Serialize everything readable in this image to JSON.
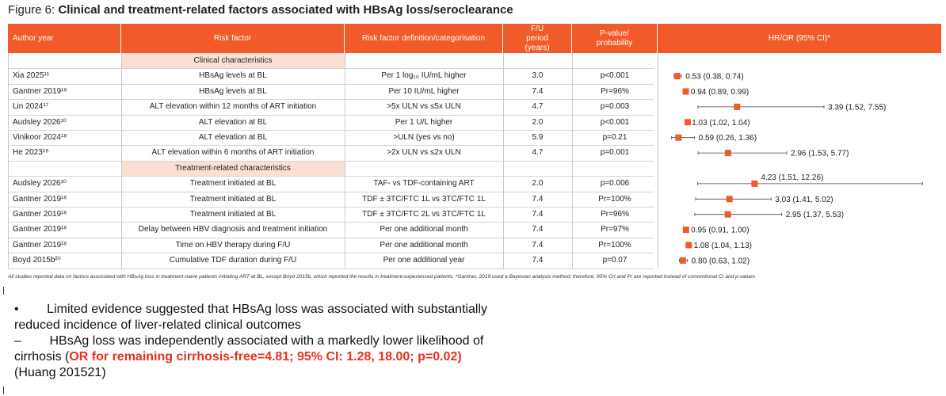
{
  "figure": {
    "title_lead": "Figure 6: ",
    "title_main": "Clinical and treatment-related factors associated with HBsAg loss/seroclearance"
  },
  "headers": {
    "author": "Author year",
    "risk": "Risk factor",
    "def": "Risk factor definition/categorisation",
    "fu": "F/U period (years)",
    "p": "P-value/ probability",
    "hr": "HR/OR (95% CI)*"
  },
  "sections": {
    "clinical": "Clinical characteristics",
    "treatment": "Treatment-related characteristics"
  },
  "chart_data": {
    "type": "table",
    "forest_plot": true,
    "columns": [
      "Author year",
      "Risk factor",
      "Risk factor definition/categorisation",
      "F/U period (years)",
      "P-value/ probability",
      "HR/OR (95% CI)*"
    ],
    "rows": [
      {
        "author": "Xia 2025¹¹",
        "risk": "HBsAg levels at BL",
        "def": "Per 1 log₁₀ IU/mL higher",
        "fu": "3.0",
        "p": "p<0.001",
        "est": 0.53,
        "lo": 0.38,
        "hi": 0.74,
        "label": "0.53 (0.38, 0.74)"
      },
      {
        "author": "Gantner 2019¹⁶",
        "risk": "HBsAg levels at BL",
        "def": "Per 10 IU/mL higher",
        "fu": "7.4",
        "p": "Pr=96%",
        "est": 0.94,
        "lo": 0.89,
        "hi": 0.99,
        "label": "0.94 (0.89, 0.99)"
      },
      {
        "author": "Lin 2024¹⁷",
        "risk": "ALT elevation within 12 months of ART initiation",
        "def": ">5x ULN vs ≤5x ULN",
        "fu": "4.7",
        "p": "p=0.003",
        "est": 3.39,
        "lo": 1.52,
        "hi": 7.55,
        "label": "3.39 (1.52, 7.55)"
      },
      {
        "author": "Audsley 2026¹⁰",
        "risk": "ALT elevation at BL",
        "def": "Per 1 U/L higher",
        "fu": "2.0",
        "p": "p<0.001",
        "est": 1.03,
        "lo": 1.02,
        "hi": 1.04,
        "label": "1.03 (1.02, 1.04)"
      },
      {
        "author": "Vinikoor 2024¹⁸",
        "risk": "ALT elevation at BL",
        "def": ">ULN (yes vs no)",
        "fu": "5.9",
        "p": "p=0.21",
        "est": 0.59,
        "lo": 0.26,
        "hi": 1.36,
        "label": "0.59 (0.26, 1.36)"
      },
      {
        "author": "He 2023¹⁹",
        "risk": "ALT elevation within 6 months of ART initiation",
        "def": ">2x ULN vs ≤2x ULN",
        "fu": "4.7",
        "p": "p=0.001",
        "est": 2.96,
        "lo": 1.53,
        "hi": 5.77,
        "label": "2.96 (1.53, 5.77)"
      },
      {
        "author": "Audsley 2026¹⁰",
        "risk": "Treatment initiated at BL",
        "def": "TAF- vs TDF-containing ART",
        "fu": "2.0",
        "p": "p=0.006",
        "est": 4.23,
        "lo": 1.51,
        "hi": 12.26,
        "label": "4.23 (1.51, 12.26)"
      },
      {
        "author": "Gantner 2019¹⁶",
        "risk": "Treatment initiated at BL",
        "def": "TDF ± 3TC/FTC 1L vs 3TC/FTC 1L",
        "fu": "7.4",
        "p": "Pr=100%",
        "est": 3.03,
        "lo": 1.41,
        "hi": 5.02,
        "label": "3.03 (1.41, 5.02)"
      },
      {
        "author": "Gantner 2019¹⁶",
        "risk": "Treatment initiated at BL",
        "def": "TDF ± 3TC/FTC 2L vs 3TC/FTC 1L",
        "fu": "7.4",
        "p": "Pr=96%",
        "est": 2.95,
        "lo": 1.37,
        "hi": 5.53,
        "label": "2.95 (1.37, 5.53)"
      },
      {
        "author": "Gantner 2019¹⁶",
        "risk": "Delay between HBV diagnosis and treatment initiation",
        "def": "Per one additional month",
        "fu": "7.4",
        "p": "Pr=97%",
        "est": 0.95,
        "lo": 0.91,
        "hi": 1.0,
        "label": "0.95 (0.91, 1.00)"
      },
      {
        "author": "Gantner 2019¹⁶",
        "risk": "Time on HBV therapy during F/U",
        "def": "Per one additional month",
        "fu": "7.4",
        "p": "Pr=100%",
        "est": 1.08,
        "lo": 1.04,
        "hi": 1.13,
        "label": "1.08 (1.04, 1.13)"
      },
      {
        "author": "Boyd 2015b²⁰",
        "risk": "Cumulative TDF duration during F/U",
        "def": "Per one additional year",
        "fu": "7.4",
        "p": "p=0.07",
        "est": 0.8,
        "lo": 0.63,
        "hi": 1.02,
        "label": "0.80 (0.63, 1.02)"
      }
    ],
    "colors": {
      "marker": "#f15a29",
      "header": "#f15a29",
      "section": "#fbdfd2"
    }
  },
  "footnote": "All studies reported data on factors associated with HBsAg loss in treatment-naive patients initiating ART at BL, except Boyd 2015b, which reported the results in treatment-experienced patients. *Gantner, 2019 used a Bayesian analysis method; therefore, 95% CrI and Pr are reported instead of conventional CI and p-values",
  "bullets": {
    "b1_mark": "•",
    "b1_line1": "Limited evidence suggested that HBsAg loss was associated with substantially",
    "b1_line2": "reduced incidence of liver-related clinical outcomes",
    "b2_mark": "–",
    "b2_line1": "HBsAg loss was independently associated with a markedly lower likelihood of",
    "b2_line2_plain": "cirrhosis (",
    "b2_line2_red": "OR for remaining cirrhosis-free=4.81; 95% CI: 1.28, 18.00; p=0.02)",
    "b2_line3": "(Huang 201521)"
  }
}
